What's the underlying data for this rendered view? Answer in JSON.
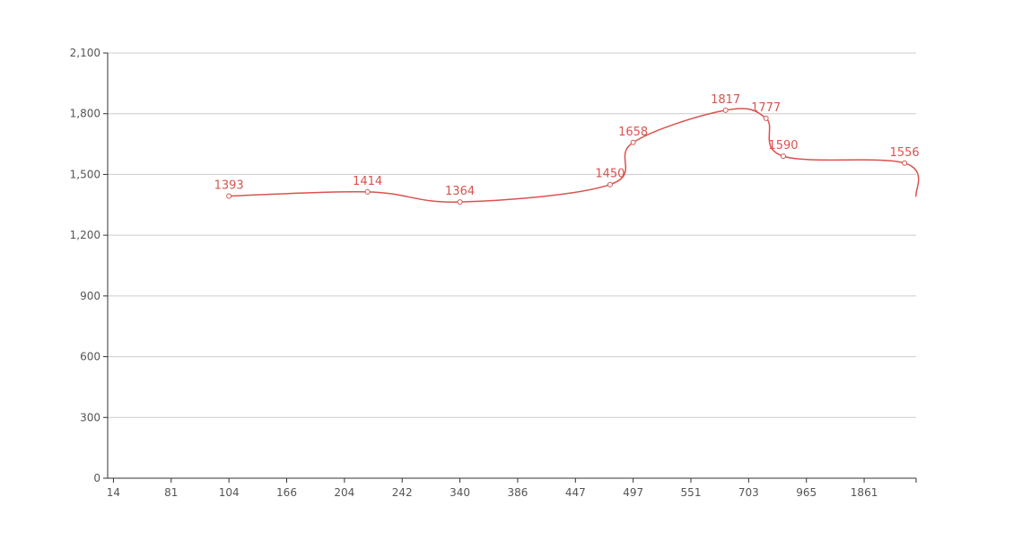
{
  "chart_data": {
    "type": "line",
    "categories": [
      "14",
      "81",
      "104",
      "166",
      "204",
      "242",
      "340",
      "386",
      "447",
      "497",
      "551",
      "703",
      "965",
      "1861"
    ],
    "xlim": [
      -0.1,
      13.9
    ],
    "ylim": [
      0,
      2100
    ],
    "yticks": [
      0,
      300,
      600,
      900,
      {
        "value": 1200,
        "label": "1,200"
      },
      {
        "value": 1500,
        "label": "1,500"
      },
      {
        "value": 1800,
        "label": "1,800"
      },
      {
        "value": 2100,
        "label": "2,100"
      }
    ],
    "grid": true,
    "smooth": true,
    "series": [
      {
        "color": "#d9534f",
        "x": [
          2.0,
          4.4,
          6.0,
          8.6,
          9.0,
          10.6,
          11.3,
          11.6,
          13.7,
          13.9
        ],
        "values": [
          1393,
          1414,
          1364,
          1450,
          1658,
          1817,
          1777,
          1590,
          1556,
          1390
        ],
        "value_labels": [
          "1393",
          "1414",
          "1364",
          "1450",
          "1658",
          "1817",
          "1777",
          "1590",
          "1556",
          null
        ]
      }
    ]
  }
}
